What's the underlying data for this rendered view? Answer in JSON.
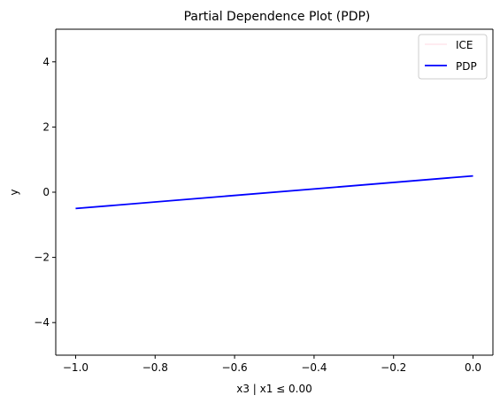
{
  "chart_data": {
    "type": "line",
    "title": "Partial Dependence Plot (PDP)",
    "xlabel": "x3 | x1 ≤ 0.00",
    "ylabel": "y",
    "xlim": [
      -1.05,
      0.05
    ],
    "ylim": [
      -5,
      5
    ],
    "xticks": [
      -1.0,
      -0.8,
      -0.6,
      -0.4,
      -0.2,
      0.0
    ],
    "xtick_labels": [
      "−1.0",
      "−0.8",
      "−0.6",
      "−0.4",
      "−0.2",
      "0.0"
    ],
    "yticks": [
      -4,
      -2,
      0,
      2,
      4
    ],
    "ytick_labels": [
      "−4",
      "−2",
      "0",
      "2",
      "4"
    ],
    "grid": false,
    "legend_position": "upper right",
    "series": [
      {
        "name": "ICE",
        "color": "#ffc0cb",
        "x": [
          -1.0,
          0.0
        ],
        "y": [
          -0.5,
          0.5
        ]
      },
      {
        "name": "PDP",
        "color": "#0000ff",
        "x": [
          -1.0,
          0.0
        ],
        "y": [
          -0.5,
          0.5
        ]
      }
    ]
  }
}
